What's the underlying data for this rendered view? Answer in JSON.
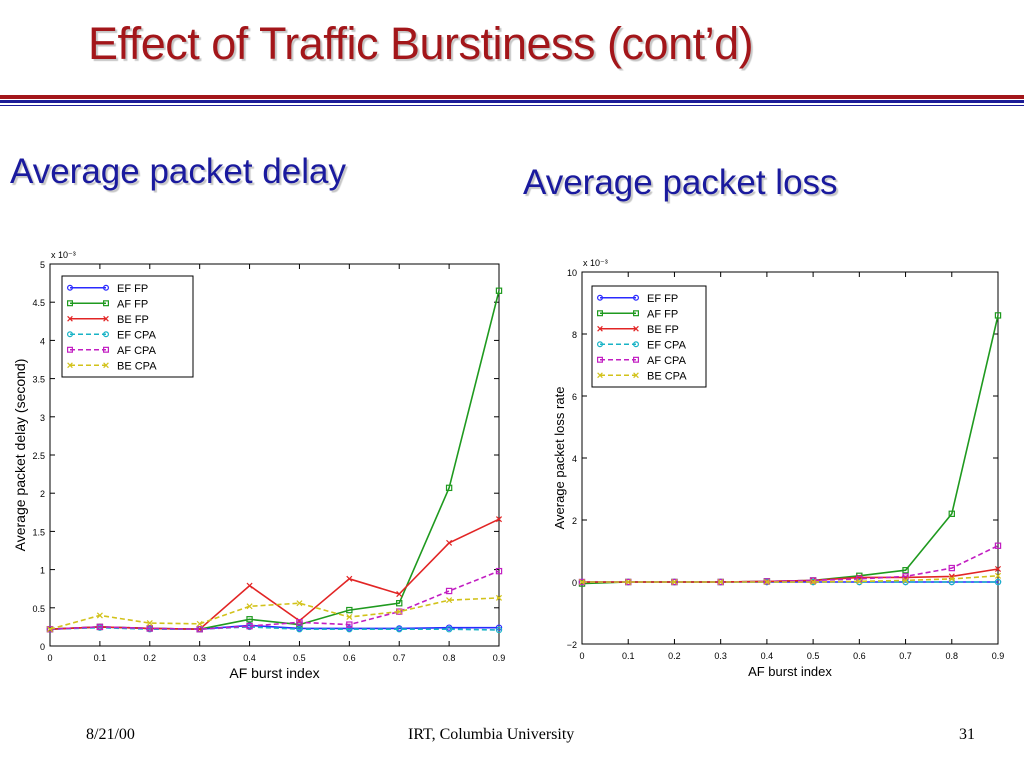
{
  "slide": {
    "title": "Effect of Traffic Burstiness (cont’d)",
    "left_heading": "Average packet delay",
    "right_heading": "Average packet loss",
    "footer": {
      "date": "8/21/00",
      "center": "IRT, Columbia University",
      "page": "31"
    }
  },
  "chart_data": [
    {
      "type": "line",
      "title": "",
      "xlabel": "AF burst index",
      "ylabel": "Average packet delay (second)",
      "y_multiplier": "x 10⁻³",
      "x": [
        0,
        0.1,
        0.2,
        0.3,
        0.4,
        0.5,
        0.6,
        0.7,
        0.8,
        0.9
      ],
      "xlim": [
        0,
        0.9
      ],
      "ylim": [
        0,
        5
      ],
      "xticks": [
        "0",
        "0.1",
        "0.2",
        "0.3",
        "0.4",
        "0.5",
        "0.6",
        "0.7",
        "0.8",
        "0.9"
      ],
      "yticks": [
        "0",
        "0.5",
        "1",
        "1.5",
        "2",
        "2.5",
        "3",
        "3.5",
        "4",
        "4.5",
        "5"
      ],
      "grid": false,
      "legend_position": "top-left",
      "series": [
        {
          "name": "EF FP",
          "color": "#2a2aff",
          "dash": "solid",
          "marker": "circle",
          "values": [
            0.22,
            0.25,
            0.23,
            0.22,
            0.27,
            0.23,
            0.23,
            0.23,
            0.24,
            0.24
          ]
        },
        {
          "name": "AF FP",
          "color": "#1f9a1f",
          "dash": "solid",
          "marker": "square",
          "values": [
            0.22,
            0.25,
            0.23,
            0.22,
            0.35,
            0.28,
            0.47,
            0.56,
            2.07,
            4.65
          ]
        },
        {
          "name": "BE FP",
          "color": "#e22525",
          "dash": "solid",
          "marker": "x",
          "values": [
            0.22,
            0.25,
            0.23,
            0.22,
            0.79,
            0.33,
            0.88,
            0.68,
            1.35,
            1.66
          ]
        },
        {
          "name": "EF CPA",
          "color": "#18b3c6",
          "dash": "dashed",
          "marker": "circle",
          "values": [
            0.22,
            0.24,
            0.22,
            0.22,
            0.25,
            0.22,
            0.22,
            0.22,
            0.22,
            0.21
          ]
        },
        {
          "name": "AF CPA",
          "color": "#c21ec2",
          "dash": "dashed",
          "marker": "square",
          "values": [
            0.22,
            0.25,
            0.23,
            0.22,
            0.26,
            0.31,
            0.28,
            0.45,
            0.72,
            0.98
          ]
        },
        {
          "name": "BE CPA",
          "color": "#d2c21a",
          "dash": "dashed",
          "marker": "x",
          "values": [
            0.22,
            0.4,
            0.3,
            0.29,
            0.52,
            0.56,
            0.38,
            0.45,
            0.6,
            0.63
          ]
        }
      ]
    },
    {
      "type": "line",
      "title": "",
      "xlabel": "AF burst index",
      "ylabel": "Average packet loss rate",
      "y_multiplier": "x 10⁻³",
      "x": [
        0,
        0.1,
        0.2,
        0.3,
        0.4,
        0.5,
        0.6,
        0.7,
        0.8,
        0.9
      ],
      "xlim": [
        0,
        0.9
      ],
      "ylim": [
        -2,
        10
      ],
      "xticks": [
        "0",
        "0.1",
        "0.2",
        "0.3",
        "0.4",
        "0.5",
        "0.6",
        "0.7",
        "0.8",
        "0.9"
      ],
      "yticks": [
        "−2",
        "0",
        "2",
        "4",
        "6",
        "8",
        "10"
      ],
      "grid": false,
      "legend_position": "top-left",
      "series": [
        {
          "name": "EF FP",
          "color": "#2a2aff",
          "dash": "solid",
          "marker": "circle",
          "values": [
            0,
            0,
            0,
            0,
            0,
            0,
            0,
            0,
            0,
            0
          ]
        },
        {
          "name": "AF FP",
          "color": "#1f9a1f",
          "dash": "solid",
          "marker": "square",
          "values": [
            -0.05,
            0,
            0,
            0,
            0.02,
            0.05,
            0.2,
            0.38,
            2.2,
            8.6
          ]
        },
        {
          "name": "BE FP",
          "color": "#e22525",
          "dash": "solid",
          "marker": "x",
          "values": [
            0,
            0,
            0,
            0,
            0.02,
            0.05,
            0.15,
            0.15,
            0.18,
            0.42
          ]
        },
        {
          "name": "EF CPA",
          "color": "#18b3c6",
          "dash": "dashed",
          "marker": "circle",
          "values": [
            0,
            0,
            0,
            0,
            0,
            0,
            0,
            0,
            0,
            0
          ]
        },
        {
          "name": "AF CPA",
          "color": "#c21ec2",
          "dash": "dashed",
          "marker": "square",
          "values": [
            0,
            0,
            0,
            0,
            0.02,
            0.05,
            0.1,
            0.18,
            0.45,
            1.17
          ]
        },
        {
          "name": "BE CPA",
          "color": "#d2c21a",
          "dash": "dashed",
          "marker": "x",
          "values": [
            0,
            0,
            0,
            0,
            0,
            0,
            0.02,
            0.05,
            0.1,
            0.2
          ]
        }
      ]
    }
  ]
}
